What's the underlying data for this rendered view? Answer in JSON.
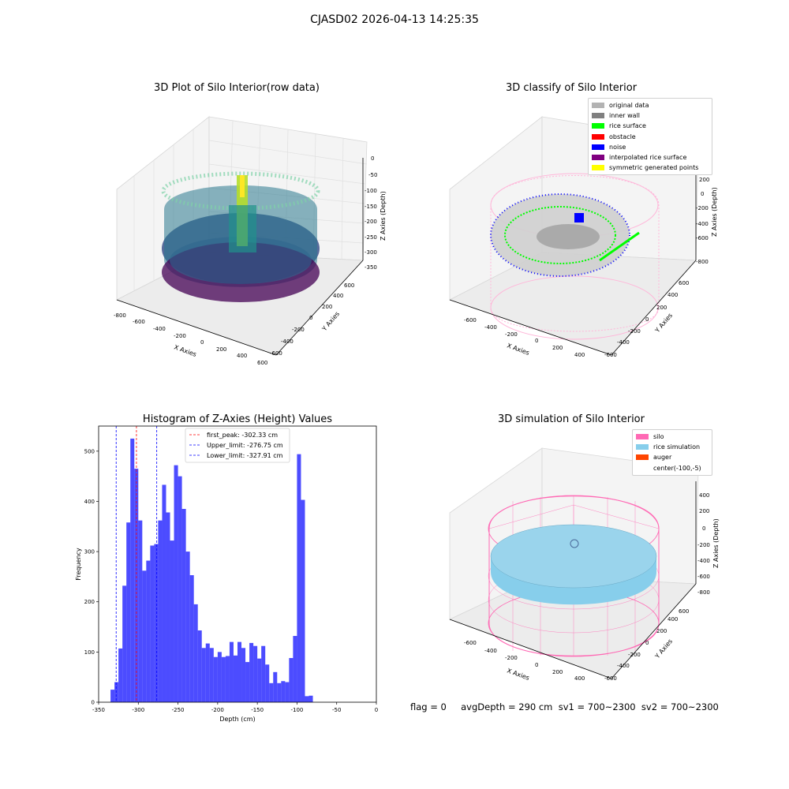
{
  "suptitle": "CJASD02 2026-04-13 14:25:35",
  "panels": {
    "p1": {
      "title": "3D Plot of Silo Interior(row data)",
      "xlabel": "X Axies",
      "ylabel": "Y Axies",
      "zlabel": "Z Axies (Depth)",
      "xticks": [
        "-800",
        "-600",
        "-400",
        "-200",
        "0",
        "200",
        "400",
        "600"
      ],
      "yticks": [
        "-600",
        "-400",
        "-200",
        "0",
        "200",
        "400",
        "600"
      ],
      "zticks": [
        "0",
        "-50",
        "-100",
        "-150",
        "-200",
        "-250",
        "-300",
        "-350"
      ]
    },
    "p2": {
      "title": "3D classify of Silo Interior",
      "xlabel": "X Axies",
      "ylabel": "Y Axies",
      "zlabel": "Z Axies (Depth)",
      "xticks": [
        "-600",
        "-400",
        "-200",
        "0",
        "200",
        "400"
      ],
      "yticks": [
        "-600",
        "-400",
        "-200",
        "0",
        "200",
        "400",
        "600"
      ],
      "zticks": [
        "400",
        "200",
        "0",
        "-200",
        "-400",
        "-600",
        "-800"
      ],
      "legend": [
        {
          "label": "original data",
          "color": "#b3b3b3"
        },
        {
          "label": "inner wall",
          "color": "#808080"
        },
        {
          "label": "rice surface",
          "color": "#00ff00"
        },
        {
          "label": "obstacle",
          "color": "#ff0000"
        },
        {
          "label": "noise",
          "color": "#0000ff"
        },
        {
          "label": "interpolated rice surface",
          "color": "#800080"
        },
        {
          "label": "symmetric generated points",
          "color": "#ffff00"
        }
      ]
    },
    "p4": {
      "title": "3D simulation of Silo Interior",
      "xlabel": "X Axies",
      "ylabel": "Y Axies",
      "zlabel": "Z Axies (Depth)",
      "xticks": [
        "-600",
        "-400",
        "-200",
        "0",
        "200",
        "400"
      ],
      "yticks": [
        "-600",
        "-400",
        "-200",
        "0",
        "200",
        "400",
        "600"
      ],
      "zticks": [
        "400",
        "200",
        "0",
        "-200",
        "-400",
        "-600",
        "-800"
      ],
      "legend": [
        {
          "label": "silo",
          "color": "#ff69b4"
        },
        {
          "label": "rice simulation",
          "color": "#87ceeb"
        },
        {
          "label": "auger",
          "color": "#ff4500"
        },
        {
          "label": "center(-100,-5)",
          "color": "none"
        }
      ]
    }
  },
  "chart_data": {
    "type": "bar",
    "title": "Histogram of Z-Axies (Height) Values",
    "xlabel": "Depth (cm)",
    "ylabel": "Frequency",
    "xlim": [
      -350,
      0
    ],
    "ylim": [
      0,
      550
    ],
    "xticks": [
      -350,
      -300,
      -250,
      -200,
      -150,
      -100,
      -50,
      0
    ],
    "yticks": [
      0,
      100,
      200,
      300,
      400,
      500
    ],
    "bin_width": 5,
    "bin_start": -335,
    "values": [
      25,
      40,
      107,
      232,
      358,
      525,
      465,
      362,
      262,
      282,
      312,
      315,
      362,
      433,
      378,
      322,
      472,
      450,
      385,
      300,
      253,
      195,
      143,
      108,
      117,
      108,
      90,
      100,
      90,
      92,
      120,
      93,
      120,
      108,
      80,
      118,
      112,
      87,
      112,
      75,
      38,
      60,
      38,
      42,
      40,
      88,
      132,
      494,
      403,
      12,
      13
    ],
    "color": "#0000ff",
    "vlines": [
      {
        "x": -302.33,
        "color": "#ff0000",
        "label": "first_peak: -302.33 cm"
      },
      {
        "x": -276.75,
        "color": "#0000ff",
        "label": "Upper_limit: -276.75 cm"
      },
      {
        "x": -327.91,
        "color": "#0000ff",
        "label": "Lower_limit: -327.91 cm"
      }
    ],
    "legend_position": "upper-center"
  },
  "footer": "flag = 0     avgDepth = 290 cm  sv1 = 700~2300  sv2 = 700~2300"
}
